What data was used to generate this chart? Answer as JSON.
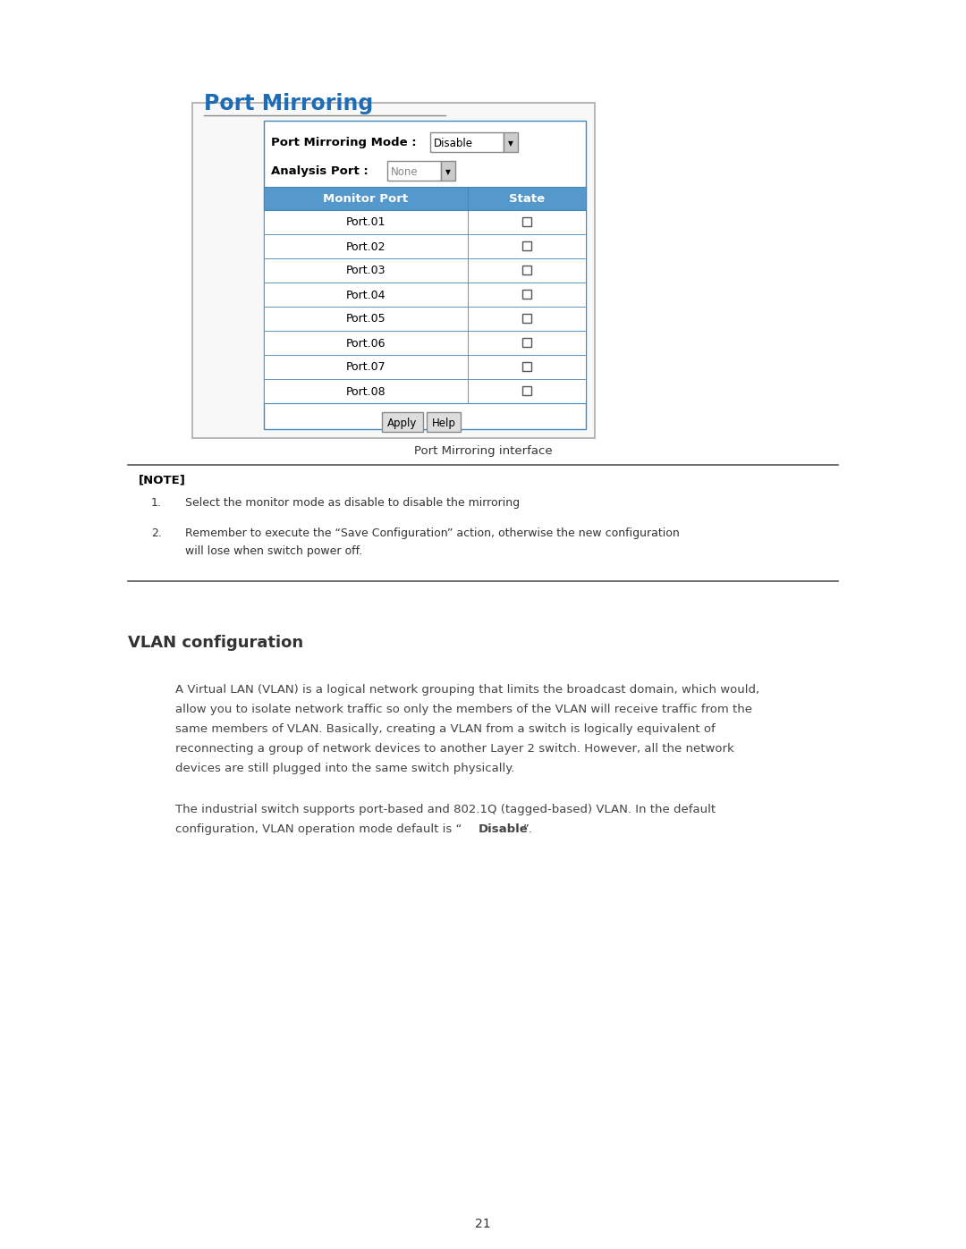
{
  "page_width": 10.8,
  "page_height": 13.97,
  "bg_color": "#ffffff",
  "section_title": "Port Mirroring",
  "section_title_color": "#1e6cb5",
  "section_title_size": 17,
  "mode_label": "Port Mirroring Mode :",
  "mode_value": "Disable",
  "analysis_label": "Analysis Port :",
  "analysis_value": "None",
  "table_header_bg": "#5599cc",
  "table_header_text_color": "#ffffff",
  "table_border_color": "#4488bb",
  "ports": [
    "Port.01",
    "Port.02",
    "Port.03",
    "Port.04",
    "Port.05",
    "Port.06",
    "Port.07",
    "Port.08"
  ],
  "caption": "Port Mirroring interface",
  "note_header": "[NOTE]",
  "note_item1": "Select the monitor mode as disable to disable the mirroring",
  "note_item2a": "Remember to execute the “Save Configuration” action, otherwise the new configuration",
  "note_item2b": "will lose when switch power off.",
  "vlan_title": "VLAN configuration",
  "vlan_para1_lines": [
    "A Virtual LAN (VLAN) is a logical network grouping that limits the broadcast domain, which would,",
    "allow you to isolate network traffic so only the members of the VLAN will receive traffic from the",
    "same members of VLAN. Basically, creating a VLAN from a switch is logically equivalent of",
    "reconnecting a group of network devices to another Layer 2 switch. However, all the network",
    "devices are still plugged into the same switch physically."
  ],
  "vlan_para2_line1": "The industrial switch supports port-based and 802.1Q (tagged-based) VLAN. In the default",
  "vlan_para2_line2_pre": "configuration, VLAN operation mode default is “",
  "vlan_para2_bold": "Disable",
  "vlan_para2_post": "”.",
  "page_number": "21"
}
